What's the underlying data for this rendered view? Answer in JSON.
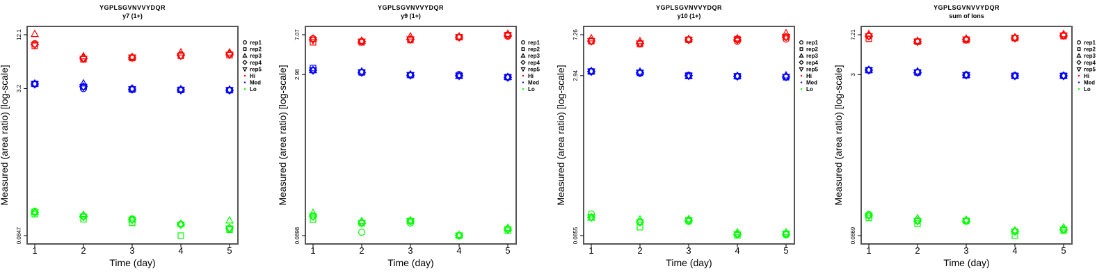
{
  "chart_data": [
    {
      "type": "scatter",
      "title": "YGPLSGVNVVYDQR",
      "subtitle": "y7 (1+)",
      "xlabel": "Time (day)",
      "ylabel": "Measured (area ratio) [log-scale]",
      "x": [
        1,
        2,
        3,
        4,
        5
      ],
      "x_tick_labels": [
        "1",
        "2",
        "3",
        "4",
        "5"
      ],
      "y_scale": "log",
      "y_ticks": [
        {
          "value": 12.1,
          "label": "12.1"
        },
        {
          "value": 3.2,
          "label": "3.2"
        },
        {
          "value": 0.0847,
          "label": "0.0847"
        }
      ],
      "ylim": [
        0.0847,
        12.1
      ],
      "series": [
        {
          "name": "Hi",
          "values": [
            [
              9.7,
              9.2,
              12.3,
              9.5,
              9.4
            ],
            [
              6.7,
              6.6,
              7.1,
              6.8,
              6.7
            ],
            [
              6.9,
              6.8,
              7.0,
              6.9,
              6.9
            ],
            [
              7.3,
              7.2,
              7.8,
              7.3,
              7.2
            ],
            [
              7.5,
              7.3,
              7.8,
              7.5,
              7.4
            ]
          ]
        },
        {
          "name": "Med",
          "values": [
            [
              3.58,
              3.6,
              3.62,
              3.58,
              3.57
            ],
            [
              3.2,
              3.35,
              3.63,
              3.35,
              3.33
            ],
            [
              3.17,
              3.12,
              3.2,
              3.15,
              3.15
            ],
            [
              3.1,
              3.1,
              3.15,
              3.1,
              3.08
            ],
            [
              3.08,
              3.08,
              3.12,
              3.08,
              3.07
            ]
          ]
        },
        {
          "name": "Lo",
          "values": [
            [
              0.155,
              0.144,
              0.152,
              0.15,
              0.15
            ],
            [
              0.137,
              0.127,
              0.141,
              0.136,
              0.135
            ],
            [
              0.128,
              0.116,
              0.126,
              0.126,
              0.125
            ],
            [
              0.112,
              0.0847,
              0.113,
              0.112,
              0.111
            ],
            [
              0.1,
              0.098,
              0.123,
              0.102,
              0.101
            ]
          ]
        }
      ],
      "legend": {
        "placement": "right",
        "entries": [
          "rep1",
          "rep2",
          "rep3",
          "rep4",
          "rep5",
          "Hi",
          "Med",
          "Lo"
        ]
      }
    },
    {
      "type": "scatter",
      "title": "YGPLSGVNVVYDQR",
      "subtitle": "y9 (1+)",
      "xlabel": "Time (day)",
      "ylabel": "Measured (area ratio) [log-scale]",
      "x": [
        1,
        2,
        3,
        4,
        5
      ],
      "x_tick_labels": [
        "1",
        "2",
        "3",
        "4",
        "5"
      ],
      "y_scale": "log",
      "y_ticks": [
        {
          "value": 7.07,
          "label": "7.07"
        },
        {
          "value": 2.98,
          "label": "2.98"
        },
        {
          "value": 0.0898,
          "label": "0.0898"
        }
      ],
      "ylim": [
        0.0898,
        7.07
      ],
      "series": [
        {
          "name": "Hi",
          "values": [
            [
              6.5,
              6.0,
              6.5,
              6.4,
              6.3
            ],
            [
              6.1,
              6.0,
              6.2,
              6.1,
              6.1
            ],
            [
              6.4,
              6.3,
              6.8,
              6.4,
              6.4
            ],
            [
              6.7,
              6.7,
              6.8,
              6.7,
              6.7
            ],
            [
              6.85,
              7.0,
              7.2,
              7.0,
              7.0
            ]
          ]
        },
        {
          "name": "Med",
          "values": [
            [
              3.27,
              3.43,
              3.27,
              3.27,
              3.26
            ],
            [
              3.12,
              3.12,
              3.18,
              3.12,
              3.12
            ],
            [
              2.94,
              2.94,
              2.98,
              2.94,
              2.94
            ],
            [
              2.98,
              2.9,
              2.88,
              2.9,
              2.9
            ],
            [
              2.8,
              2.82,
              2.82,
              2.8,
              2.8
            ]
          ]
        },
        {
          "name": "Lo",
          "values": [
            [
              0.137,
              0.127,
              0.147,
              0.137,
              0.136
            ],
            [
              0.0967,
              0.118,
              0.123,
              0.118,
              0.118
            ],
            [
              0.118,
              0.123,
              0.125,
              0.123,
              0.123
            ],
            [
              0.09,
              0.0898,
              0.091,
              0.09,
              0.09
            ],
            [
              0.103,
              0.1,
              0.106,
              0.103,
              0.103
            ]
          ]
        }
      ],
      "legend": {
        "placement": "right",
        "entries": [
          "rep1",
          "rep2",
          "rep3",
          "rep4",
          "rep5",
          "Hi",
          "Med",
          "Lo"
        ]
      }
    },
    {
      "type": "scatter",
      "title": "YGPLSGVNVVYDQR",
      "subtitle": "y10 (1+)",
      "xlabel": "Time (day)",
      "ylabel": "Measured (area ratio) [log-scale]",
      "x": [
        1,
        2,
        3,
        4,
        5
      ],
      "x_tick_labels": [
        "1",
        "2",
        "3",
        "4",
        "5"
      ],
      "y_scale": "log",
      "y_ticks": [
        {
          "value": 7.26,
          "label": "7.26"
        },
        {
          "value": 2.94,
          "label": "2.94"
        },
        {
          "value": 0.0855,
          "label": "0.0855"
        }
      ],
      "ylim": [
        0.0855,
        7.26
      ],
      "series": [
        {
          "name": "Hi",
          "values": [
            [
              6.3,
              6.3,
              6.7,
              6.3,
              6.3
            ],
            [
              6.0,
              5.9,
              6.3,
              6.0,
              6.0
            ],
            [
              6.5,
              6.5,
              6.6,
              6.5,
              6.5
            ],
            [
              6.3,
              6.6,
              6.7,
              6.5,
              6.5
            ],
            [
              6.6,
              6.9,
              7.5,
              6.9,
              6.9
            ]
          ]
        },
        {
          "name": "Med",
          "values": [
            [
              3.22,
              3.22,
              3.25,
              3.22,
              3.22
            ],
            [
              3.1,
              3.13,
              3.2,
              3.13,
              3.13
            ],
            [
              2.96,
              2.94,
              2.9,
              2.94,
              2.94
            ],
            [
              2.9,
              2.9,
              2.92,
              2.9,
              2.9
            ],
            [
              2.86,
              2.84,
              2.95,
              2.86,
              2.86
            ]
          ]
        },
        {
          "name": "Lo",
          "values": [
            [
              0.138,
              0.128,
              0.127,
              0.128,
              0.128
            ],
            [
              0.115,
              0.103,
              0.122,
              0.115,
              0.115
            ],
            [
              0.117,
              0.12,
              0.123,
              0.12,
              0.12
            ],
            [
              0.088,
              0.086,
              0.092,
              0.088,
              0.088
            ],
            [
              0.087,
              0.089,
              0.092,
              0.088,
              0.088
            ]
          ]
        }
      ],
      "legend": {
        "placement": "right",
        "entries": [
          "rep1",
          "rep2",
          "rep3",
          "rep4",
          "rep5",
          "Hi",
          "Med",
          "Lo"
        ]
      }
    },
    {
      "type": "scatter",
      "title": "YGPLSGVNVVYDQR",
      "subtitle": "sum of Ions",
      "xlabel": "Time (day)",
      "ylabel": "Measured (area ratio) [log-scale]",
      "x": [
        1,
        2,
        3,
        4,
        5
      ],
      "x_tick_labels": [
        "1",
        "2",
        "3",
        "4",
        "5"
      ],
      "y_scale": "log",
      "y_ticks": [
        {
          "value": 7.21,
          "label": "7.21"
        },
        {
          "value": 3,
          "label": "3"
        },
        {
          "value": 0.0869,
          "label": "0.0869"
        }
      ],
      "ylim": [
        0.0869,
        7.21
      ],
      "series": [
        {
          "name": "Hi",
          "values": [
            [
              7.0,
              6.6,
              7.3,
              7.0,
              7.0
            ],
            [
              6.2,
              6.2,
              6.3,
              6.2,
              6.2
            ],
            [
              6.5,
              6.4,
              6.6,
              6.5,
              6.5
            ],
            [
              6.7,
              6.7,
              6.8,
              6.7,
              6.7
            ],
            [
              7.1,
              7.0,
              7.3,
              7.1,
              7.1
            ]
          ]
        },
        {
          "name": "Med",
          "values": [
            [
              3.31,
              3.31,
              3.33,
              3.31,
              3.31
            ],
            [
              3.13,
              3.15,
              3.22,
              3.15,
              3.15
            ],
            [
              2.99,
              2.96,
              2.97,
              2.97,
              2.97
            ],
            [
              2.94,
              2.92,
              2.93,
              2.92,
              2.92
            ],
            [
              2.92,
              2.92,
              2.93,
              2.92,
              2.92
            ]
          ]
        },
        {
          "name": "Lo",
          "values": [
            [
              0.138,
              0.128,
              0.136,
              0.135,
              0.135
            ],
            [
              0.12,
              0.113,
              0.127,
              0.12,
              0.12
            ],
            [
              0.12,
              0.12,
              0.123,
              0.12,
              0.12
            ],
            [
              0.0952,
              0.0869,
              0.097,
              0.0952,
              0.0952
            ],
            [
              0.099,
              0.097,
              0.104,
              0.099,
              0.099
            ]
          ]
        }
      ],
      "legend": {
        "placement": "right",
        "entries": [
          "rep1",
          "rep2",
          "rep3",
          "rep4",
          "rep5",
          "Hi",
          "Med",
          "Lo"
        ]
      }
    }
  ],
  "colors": {
    "Hi": "#ff0000",
    "Med": "#0000ff",
    "Lo": "#00ff00",
    "frame": "#555555"
  },
  "rep_shapes": [
    "circle",
    "square",
    "triangle-up",
    "diamond",
    "triangle-down"
  ]
}
